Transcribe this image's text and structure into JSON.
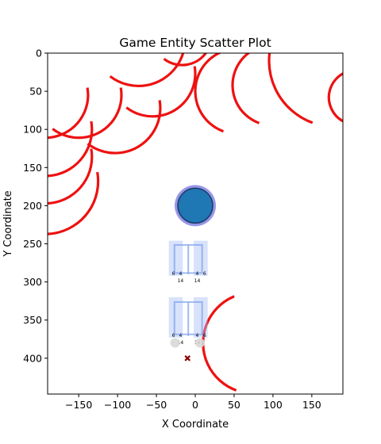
{
  "chart_data": {
    "type": "scatter",
    "title": "Game Entity Scatter Plot",
    "xlabel": "X Coordinate",
    "ylabel": "Y Coordinate",
    "xlim": [
      -190,
      190
    ],
    "ylim": [
      447,
      0
    ],
    "y_inverted": true,
    "grid": false,
    "legend": "none",
    "xticks": [
      -150,
      -100,
      -50,
      0,
      50,
      100,
      150
    ],
    "xtick_labels": [
      "−150",
      "−100",
      "−50",
      "0",
      "50",
      "100",
      "150"
    ],
    "yticks": [
      0,
      50,
      100,
      150,
      200,
      250,
      300,
      350,
      400
    ],
    "ytick_labels": [
      "0",
      "50",
      "100",
      "150",
      "200",
      "250",
      "300",
      "350",
      "400"
    ],
    "colors": {
      "arcs": "#ee1111",
      "player_fill": "#1f77b4",
      "player_edge": "#1e3a66",
      "player_halo": "#8c8ce6",
      "structures": "#a9bff5",
      "structure_lines": "#7aa0ec",
      "gray_markers": "#d8d8d8",
      "target_marker": "#8b0000"
    },
    "series": [
      {
        "type": "circle",
        "values": [
          {
            "x": 0,
            "y": 200,
            "r": 27
          }
        ]
      },
      {
        "type": "arcs",
        "values": [
          {
            "cx": -193,
            "cy": 55,
            "r": 55
          },
          {
            "cx": -193,
            "cy": 100,
            "r": 60
          },
          {
            "cx": -193,
            "cy": 136,
            "r": 60
          },
          {
            "cx": -193,
            "cy": 168,
            "r": 68
          },
          {
            "cx": -150,
            "cy": 55,
            "r": 55
          },
          {
            "cx": -103,
            "cy": 72,
            "r": 58
          },
          {
            "cx": -55,
            "cy": 27,
            "r": 55
          },
          {
            "cx": -73,
            "cy": -18,
            "r": 60
          },
          {
            "cx": -17,
            "cy": -23,
            "r": 38
          },
          {
            "cx": 55,
            "cy": 50,
            "r": 55
          },
          {
            "cx": 100,
            "cy": 42,
            "r": 52
          },
          {
            "cx": 180,
            "cy": 10,
            "r": 85
          },
          {
            "cx": 207,
            "cy": 58,
            "r": 35
          },
          {
            "cx": 75,
            "cy": 380,
            "r": 65
          }
        ]
      },
      {
        "type": "structure",
        "values": [
          {
            "x0": -34,
            "x1": 16,
            "y0": 246,
            "y1": 292,
            "labels": [
              "6",
              "4",
              "14",
              "4",
              "6",
              "14"
            ]
          },
          {
            "x0": -34,
            "x1": 16,
            "y0": 320,
            "y1": 373,
            "labels": [
              "6",
              "4",
              "14",
              "4",
              "6",
              "14"
            ]
          }
        ]
      },
      {
        "type": "point",
        "values": [
          {
            "x": -26,
            "y": 380,
            "marker": "circle"
          },
          {
            "x": 6,
            "y": 380,
            "marker": "circle"
          },
          {
            "x": -10,
            "y": 400,
            "marker": "x"
          }
        ]
      }
    ]
  }
}
